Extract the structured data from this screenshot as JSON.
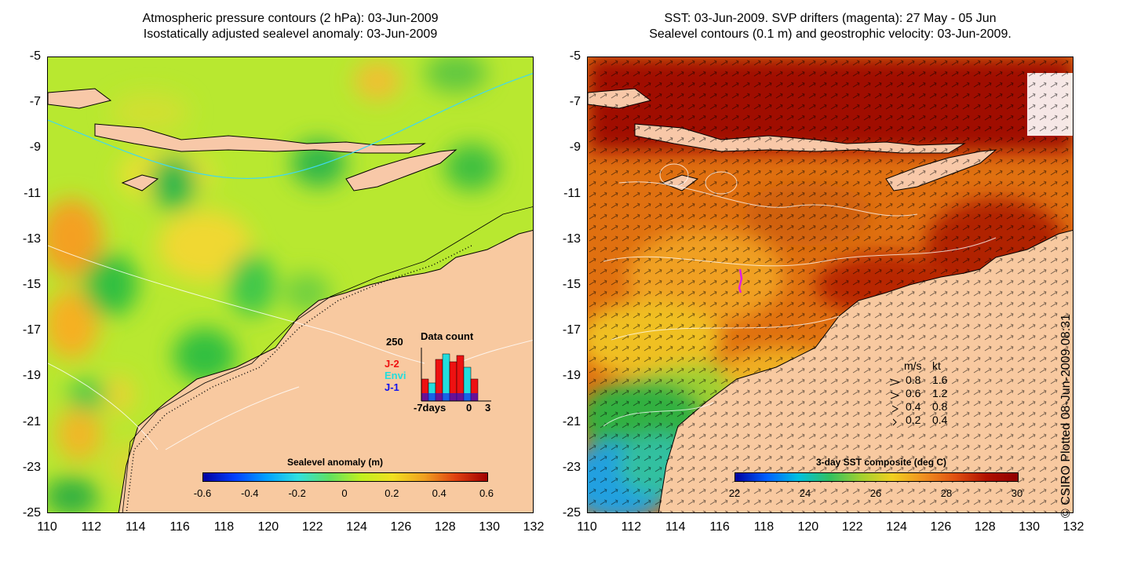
{
  "left_panel": {
    "title_line1": "Atmospheric pressure contours (2 hPa): 03-Jun-2009",
    "title_line2": "Isostatically adjusted sealevel anomaly: 03-Jun-2009",
    "colorbar": {
      "title": "Sealevel anomaly (m)",
      "ticks": [
        "-0.6",
        "-0.4",
        "-0.2",
        "0",
        "0.2",
        "0.4",
        "0.6"
      ],
      "range": [
        -0.6,
        0.6
      ]
    },
    "data_count": {
      "title": "Data count",
      "ymax_label": "250",
      "x_labels": [
        "-7days",
        "0",
        "3"
      ],
      "series_labels": [
        "J-2",
        "Envi",
        "J-1"
      ],
      "series_colors": [
        "#ee1111",
        "#22dddd",
        "#1111ee"
      ]
    }
  },
  "right_panel": {
    "title_line1": "SST: 03-Jun-2009. SVP drifters (magenta): 27 May - 05 Jun",
    "title_line2": "Sealevel contours (0.1 m) and geostrophic velocity: 03-Jun-2009.",
    "colorbar": {
      "title": "3-day SST composite (deg C)",
      "ticks": [
        "22",
        "24",
        "26",
        "28",
        "30"
      ],
      "range": [
        22,
        30
      ]
    },
    "velocity_legend": {
      "header": [
        "m/s",
        "kt"
      ],
      "rows": [
        {
          "ms": "0.8",
          "kt": "1.6"
        },
        {
          "ms": "0.6",
          "kt": "1.2"
        },
        {
          "ms": "0.4",
          "kt": "0.8"
        },
        {
          "ms": "0.2",
          "kt": "0.4"
        }
      ]
    }
  },
  "axes": {
    "lat_ticks": [
      "-5",
      "-7",
      "-9",
      "-11",
      "-13",
      "-15",
      "-17",
      "-19",
      "-21",
      "-23",
      "-25"
    ],
    "lon_ticks": [
      "110",
      "112",
      "114",
      "116",
      "118",
      "120",
      "122",
      "124",
      "126",
      "128",
      "130",
      "132"
    ],
    "lat_range": [
      -25,
      -5
    ],
    "lon_range": [
      110,
      132
    ]
  },
  "credit": "© CSIRO Plotted 08-Jun-2009 08:31",
  "colors": {
    "land": "#f8c9a0",
    "island": "#f8c8a8",
    "drifter": "#e020e0"
  }
}
